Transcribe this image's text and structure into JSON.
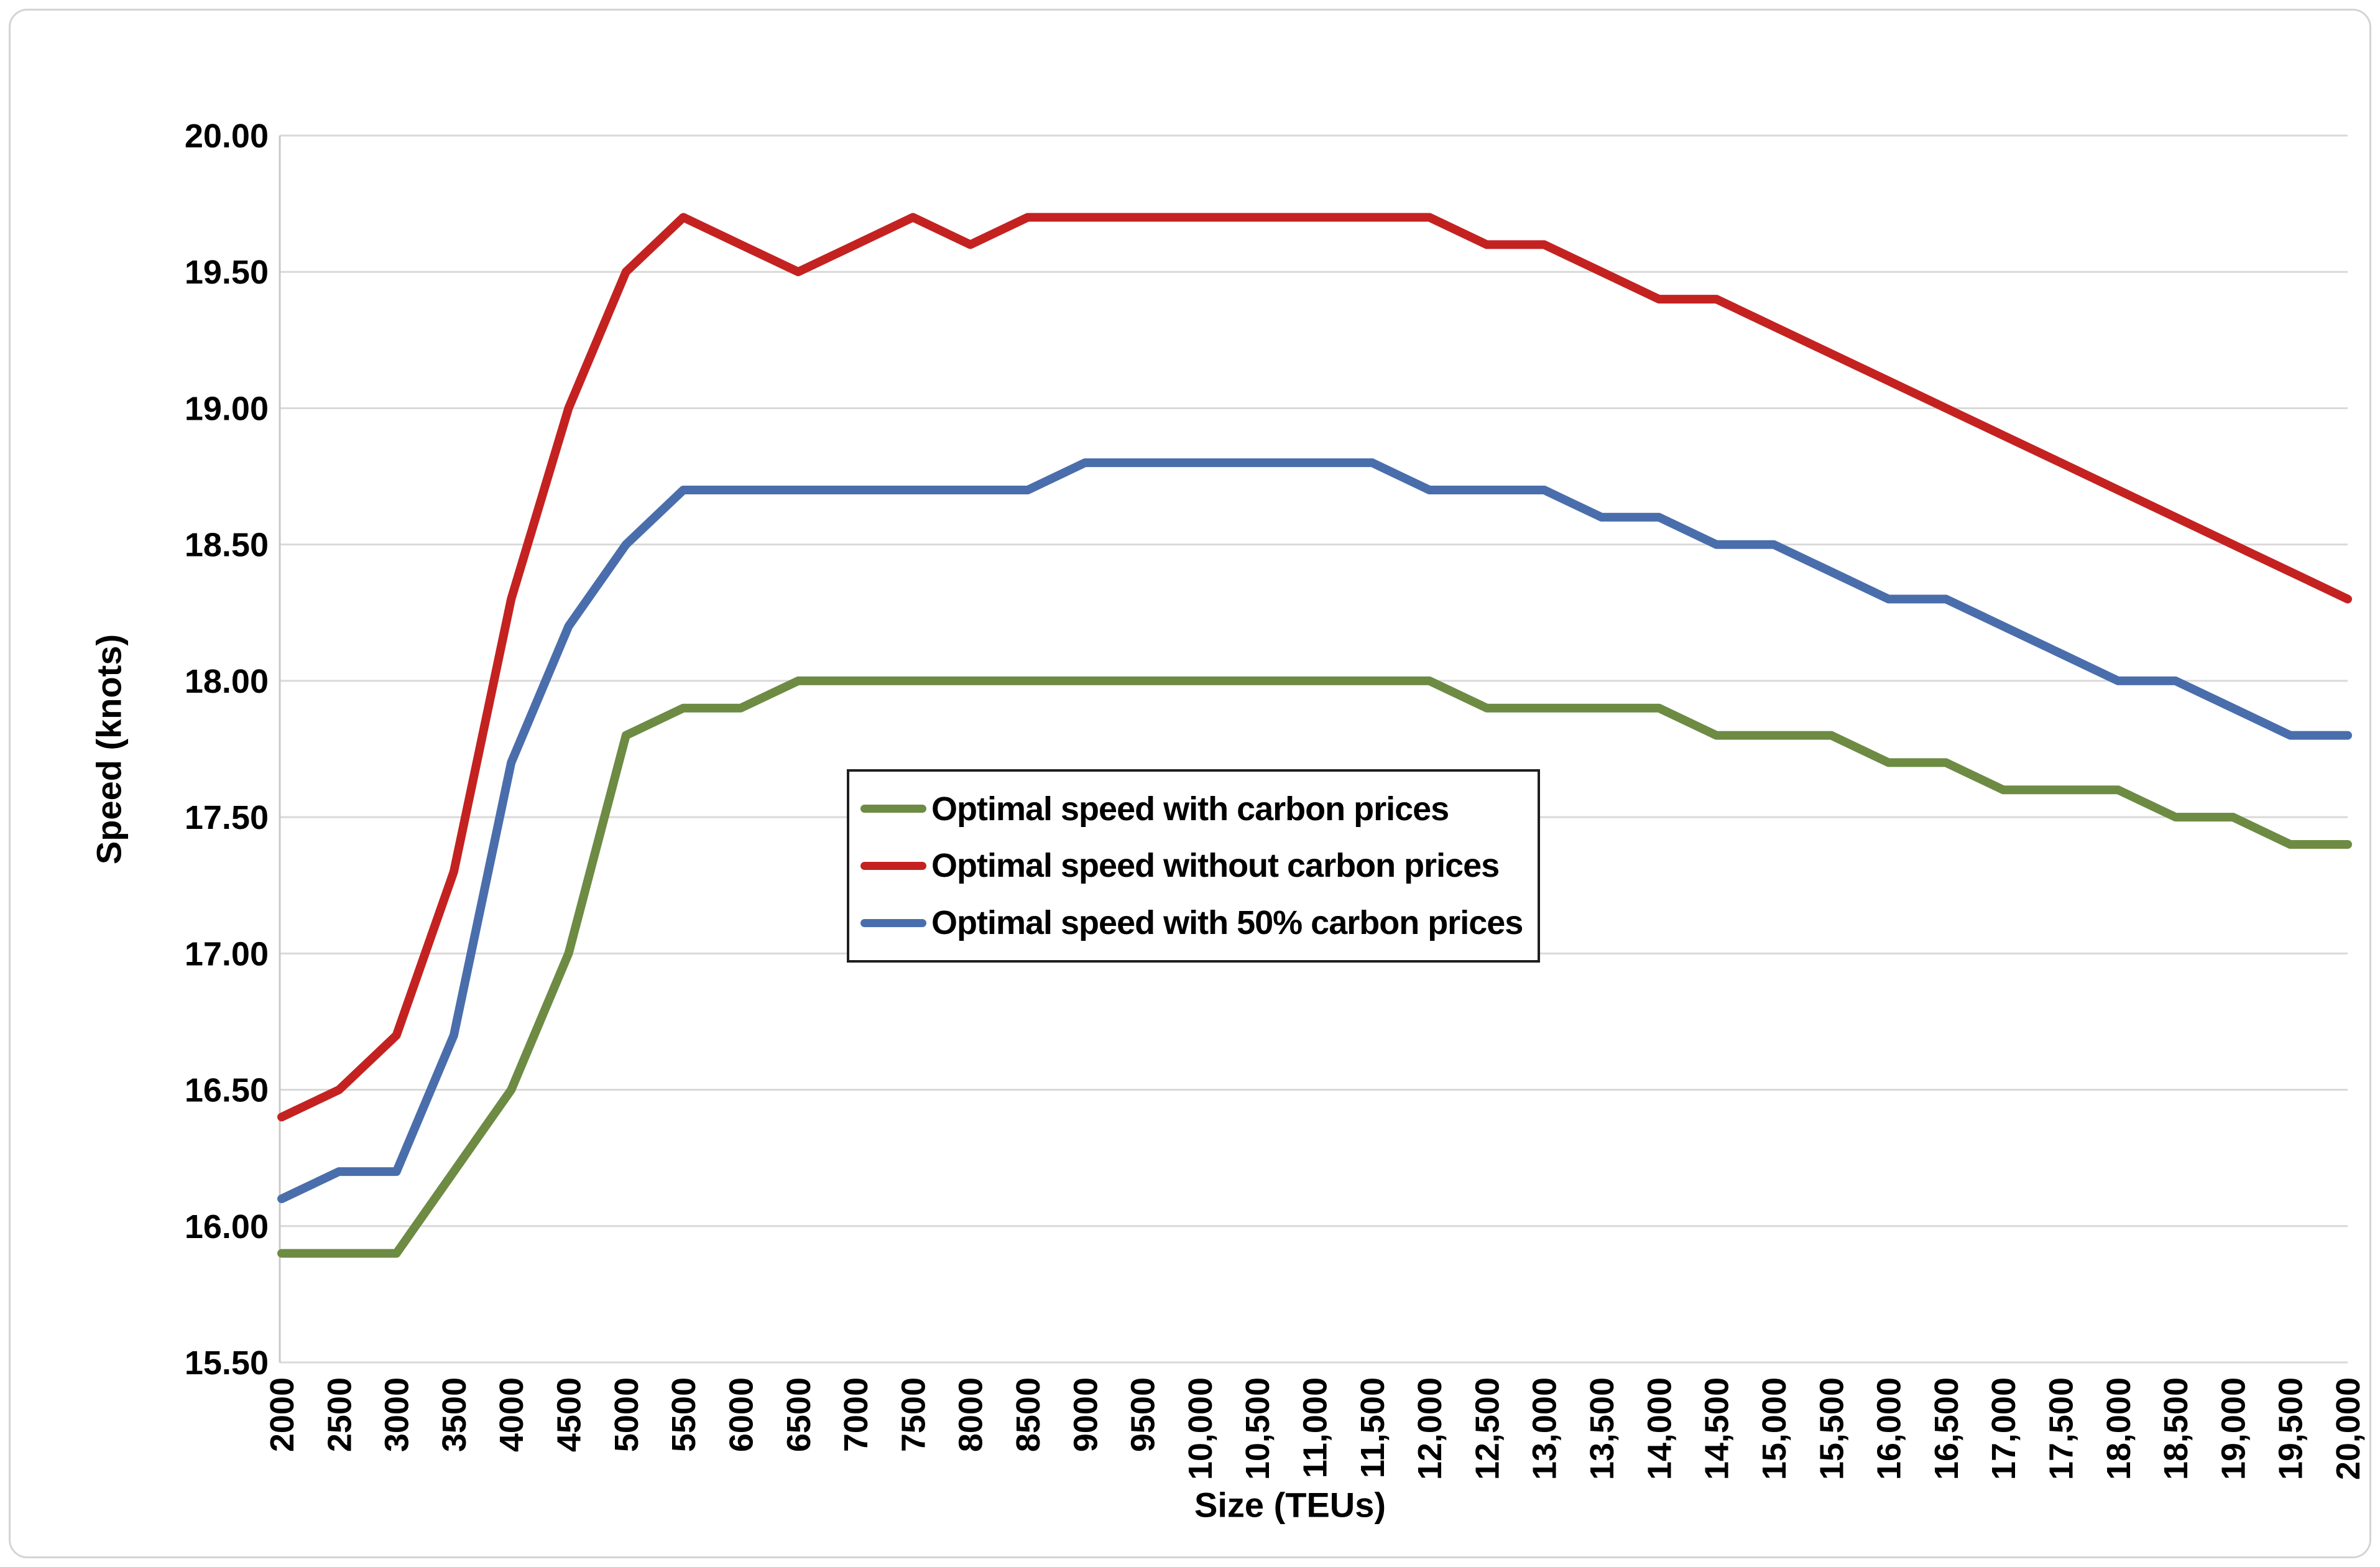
{
  "chart_data": {
    "type": "line",
    "title": "",
    "xlabel": "Size (TEUs)",
    "ylabel": "Speed (knots)",
    "ylim": [
      15.5,
      20.0
    ],
    "ytick_step": 0.5,
    "ytick_labels": [
      "15.50",
      "16.00",
      "16.50",
      "17.00",
      "17.50",
      "18.00",
      "18.50",
      "19.00",
      "19.50",
      "20.00"
    ],
    "grid": true,
    "legend_position": "inside-center-left",
    "categories": [
      "2000",
      "2500",
      "3000",
      "3500",
      "4000",
      "4500",
      "5000",
      "5500",
      "6000",
      "6500",
      "7000",
      "7500",
      "8000",
      "8500",
      "9000",
      "9500",
      "10,000",
      "10,500",
      "11,000",
      "11,500",
      "12,000",
      "12,500",
      "13,000",
      "13,500",
      "14,000",
      "14,500",
      "15,000",
      "15,500",
      "16,000",
      "16,500",
      "17,000",
      "17,500",
      "18,000",
      "18,500",
      "19,000",
      "19,500",
      "20,000"
    ],
    "series": [
      {
        "name": "Optimal speed with carbon prices",
        "color": "#6D8B43",
        "values": [
          15.9,
          15.9,
          15.9,
          16.2,
          16.5,
          17.0,
          17.8,
          17.9,
          17.9,
          18.0,
          18.0,
          18.0,
          18.0,
          18.0,
          18.0,
          18.0,
          18.0,
          18.0,
          18.0,
          18.0,
          18.0,
          17.9,
          17.9,
          17.9,
          17.9,
          17.8,
          17.8,
          17.8,
          17.7,
          17.7,
          17.6,
          17.6,
          17.6,
          17.5,
          17.5,
          17.4,
          17.4
        ]
      },
      {
        "name": "Optimal speed without carbon prices",
        "color": "#C42220",
        "values": [
          16.4,
          16.5,
          16.7,
          17.3,
          18.3,
          19.0,
          19.5,
          19.7,
          19.6,
          19.5,
          19.6,
          19.7,
          19.6,
          19.7,
          19.7,
          19.7,
          19.7,
          19.7,
          19.7,
          19.7,
          19.7,
          19.6,
          19.6,
          19.5,
          19.4,
          19.4,
          19.3,
          19.2,
          19.1,
          19.0,
          18.9,
          18.8,
          18.7,
          18.6,
          18.5,
          18.4,
          18.3
        ]
      },
      {
        "name": "Optimal speed with 50% carbon prices",
        "color": "#4A6EAC",
        "values": [
          16.1,
          16.2,
          16.2,
          16.7,
          17.7,
          18.2,
          18.5,
          18.7,
          18.7,
          18.7,
          18.7,
          18.7,
          18.7,
          18.7,
          18.8,
          18.8,
          18.8,
          18.8,
          18.8,
          18.8,
          18.7,
          18.7,
          18.7,
          18.6,
          18.6,
          18.5,
          18.5,
          18.4,
          18.3,
          18.3,
          18.2,
          18.1,
          18.0,
          18.0,
          17.9,
          17.8,
          17.8
        ]
      }
    ]
  },
  "colors": {
    "gridline": "#D9D9D9",
    "axis_line": "#C9C9C9",
    "chart_border": "#D4D4D4",
    "legend_border": "#1F1F1F",
    "text": "#000000",
    "background": "#FFFFFF"
  }
}
